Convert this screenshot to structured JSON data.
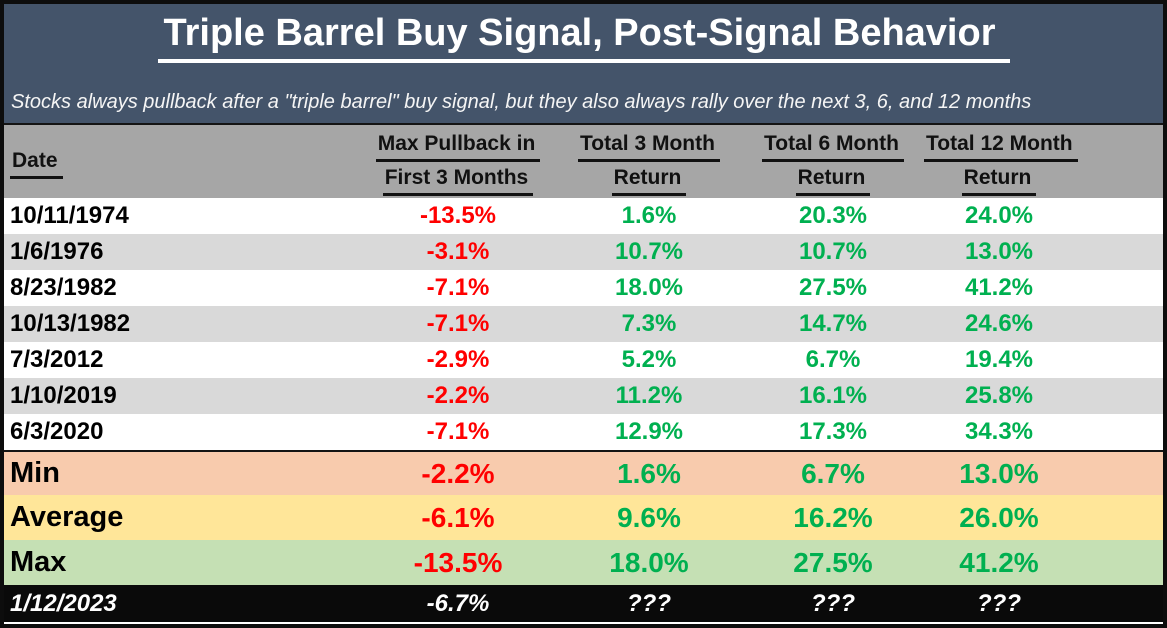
{
  "header": {
    "title": "Triple Barrel Buy Signal, Post-Signal Behavior",
    "subtitle": "Stocks always pullback after a \"triple barrel\" buy signal, but they also always rally over the next 3, 6, and 12 months"
  },
  "colors": {
    "banner_bg": "#44546A",
    "table_header_bg": "#A6A6A6",
    "row_white_bg": "#FFFFFF",
    "row_alt_bg": "#D9D9D9",
    "min_row_bg": "#F8CBAD",
    "average_row_bg": "#FFE699",
    "max_row_bg": "#C5E0B4",
    "current_row_bg": "#000000",
    "negative_text": "#FF0000",
    "positive_text": "#00B050"
  },
  "chart_data": {
    "type": "table",
    "title": "Triple Barrel Buy Signal, Post-Signal Behavior",
    "subtitle": "Stocks always pullback after a \"triple barrel\" buy signal, but they also always rally over the next 3, 6, and 12 months",
    "columns": [
      "Date",
      "Max Pullback in First 3 Months",
      "Total 3 Month Return",
      "Total 6 Month Return",
      "Total 12 Month Return"
    ],
    "header_lines": {
      "date": "Date",
      "pullback_1": "Max Pullback in",
      "pullback_2": "First 3 Months",
      "m3_1": "Total 3 Month",
      "m3_2": "Return",
      "m6_1": "Total 6 Month",
      "m6_2": "Return",
      "m12_1": "Total 12 Month",
      "m12_2": "Return"
    },
    "rows": [
      [
        "10/11/1974",
        "-13.5%",
        "1.6%",
        "20.3%",
        "24.0%"
      ],
      [
        "1/6/1976",
        "-3.1%",
        "10.7%",
        "10.7%",
        "13.0%"
      ],
      [
        "8/23/1982",
        "-7.1%",
        "18.0%",
        "27.5%",
        "41.2%"
      ],
      [
        "10/13/1982",
        "-7.1%",
        "7.3%",
        "14.7%",
        "24.6%"
      ],
      [
        "7/3/2012",
        "-2.9%",
        "5.2%",
        "6.7%",
        "19.4%"
      ],
      [
        "1/10/2019",
        "-2.2%",
        "11.2%",
        "16.1%",
        "25.8%"
      ],
      [
        "6/3/2020",
        "-7.1%",
        "12.9%",
        "17.3%",
        "34.3%"
      ]
    ],
    "summary_rows": [
      [
        "Min",
        "-2.2%",
        "1.6%",
        "6.7%",
        "13.0%"
      ],
      [
        "Average",
        "-6.1%",
        "9.6%",
        "16.2%",
        "26.0%"
      ],
      [
        "Max",
        "-13.5%",
        "18.0%",
        "27.5%",
        "41.2%"
      ]
    ],
    "current_row": [
      "1/12/2023",
      "-6.7%",
      "???",
      "???",
      "???"
    ]
  }
}
